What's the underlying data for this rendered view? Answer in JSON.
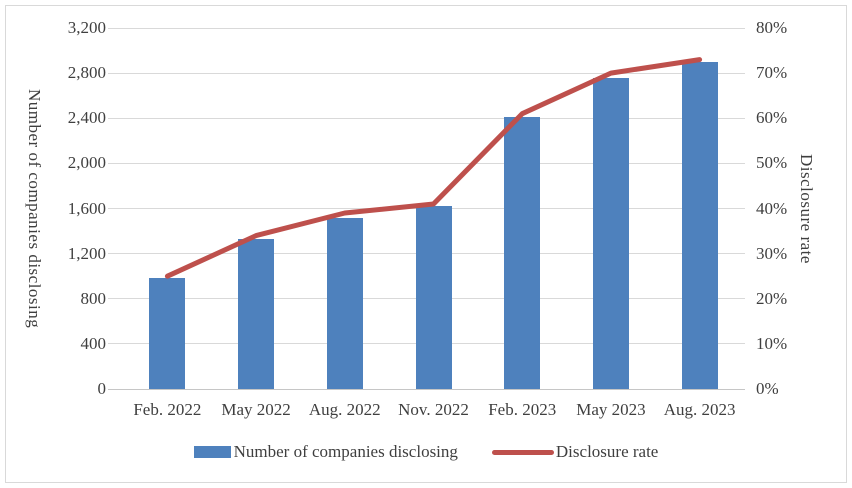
{
  "chart_data": {
    "type": "combo-bar-line",
    "categories": [
      "Feb. 2022",
      "May 2022",
      "Aug. 2022",
      "Nov. 2022",
      "Feb. 2023",
      "May 2023",
      "Aug. 2023"
    ],
    "series": [
      {
        "name": "Number of companies disclosing",
        "type": "bar",
        "axis": "left",
        "color": "#4e81bd",
        "values": [
          980,
          1330,
          1520,
          1620,
          2410,
          2760,
          2900
        ]
      },
      {
        "name": "Disclosure rate",
        "type": "line",
        "axis": "right",
        "color": "#be504c",
        "values": [
          25,
          34,
          39,
          41,
          61,
          70,
          73
        ],
        "unit": "%"
      }
    ],
    "left_axis": {
      "title": "Number of companies disclosing",
      "min": 0,
      "max": 3200,
      "step": 400,
      "tick_labels": [
        "0",
        "400",
        "800",
        "1,200",
        "1,600",
        "2,000",
        "2,400",
        "2,800",
        "3,200"
      ]
    },
    "right_axis": {
      "title": "Disclosure rate",
      "min": 0,
      "max": 80,
      "step": 10,
      "tick_labels": [
        "0%",
        "10%",
        "20%",
        "30%",
        "40%",
        "50%",
        "60%",
        "70%",
        "80%"
      ]
    },
    "grid": true,
    "legend_position": "bottom",
    "legend": [
      {
        "label": "Number of companies disclosing",
        "swatch": "bar",
        "color": "#4e81bd"
      },
      {
        "label": "Disclosure rate",
        "swatch": "line",
        "color": "#be504c"
      }
    ]
  },
  "colors": {
    "bar": "#4e81bd",
    "line": "#be504c",
    "gridline": "#d9d9d9",
    "axis_line": "#c6c6c6",
    "text": "#3f3f3f",
    "border": "#d9d9d9",
    "background": "#ffffff"
  }
}
